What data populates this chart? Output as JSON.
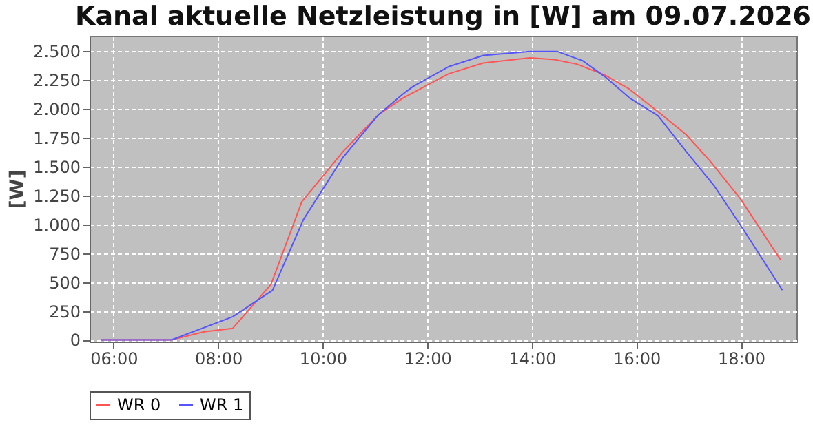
{
  "chart_data": {
    "type": "line",
    "title": "Kanal aktuelle Netzleistung in [W] am 09.07.2026",
    "ylabel": "[W]",
    "xlim": [
      5.54,
      19.06
    ],
    "ylim": [
      -15,
      2630
    ],
    "xticks": [
      {
        "value": 6,
        "label": "06:00"
      },
      {
        "value": 8,
        "label": "08:00"
      },
      {
        "value": 10,
        "label": "10:00"
      },
      {
        "value": 12,
        "label": "12:00"
      },
      {
        "value": 14,
        "label": "14:00"
      },
      {
        "value": 16,
        "label": "16:00"
      },
      {
        "value": 18,
        "label": "18:00"
      }
    ],
    "yticks": [
      0,
      250,
      500,
      750,
      {
        "value": 1000,
        "label": "1.000"
      },
      {
        "value": 1250,
        "label": "1.250"
      },
      {
        "value": 1500,
        "label": "1.500"
      },
      {
        "value": 1750,
        "label": "1.750"
      },
      {
        "value": 2000,
        "label": "2.000"
      },
      {
        "value": 2250,
        "label": "2.250"
      },
      {
        "value": 2500,
        "label": "2.500"
      }
    ],
    "grid": true,
    "legend": "bottom",
    "marker": "none",
    "line_style": "solid",
    "series": [
      {
        "name": "WR 0",
        "color": "#ff5555",
        "x": [
          5.76,
          7.11,
          7.73,
          8.28,
          9.01,
          9.6,
          10.39,
          11.07,
          11.53,
          12.4,
          13.07,
          13.97,
          14.43,
          14.86,
          15.4,
          15.86,
          16.41,
          16.95,
          17.41,
          17.98,
          18.76
        ],
        "values": [
          0,
          0,
          70,
          100,
          480,
          1195,
          1630,
          1950,
          2090,
          2300,
          2395,
          2440,
          2425,
          2385,
          2290,
          2170,
          1975,
          1775,
          1545,
          1225,
          690
        ]
      },
      {
        "name": "WR 1",
        "color": "#5555ff",
        "x": [
          5.76,
          7.11,
          8.28,
          9.04,
          9.63,
          10.39,
          11.07,
          11.53,
          11.72,
          12.42,
          13.07,
          13.97,
          14.48,
          14.97,
          15.4,
          15.86,
          16.41,
          16.95,
          17.49,
          18.03,
          18.79
        ],
        "values": [
          0,
          0,
          200,
          430,
          1040,
          1580,
          1950,
          2125,
          2190,
          2365,
          2460,
          2495,
          2495,
          2415,
          2275,
          2095,
          1940,
          1630,
          1330,
          965,
          430
        ]
      }
    ]
  }
}
